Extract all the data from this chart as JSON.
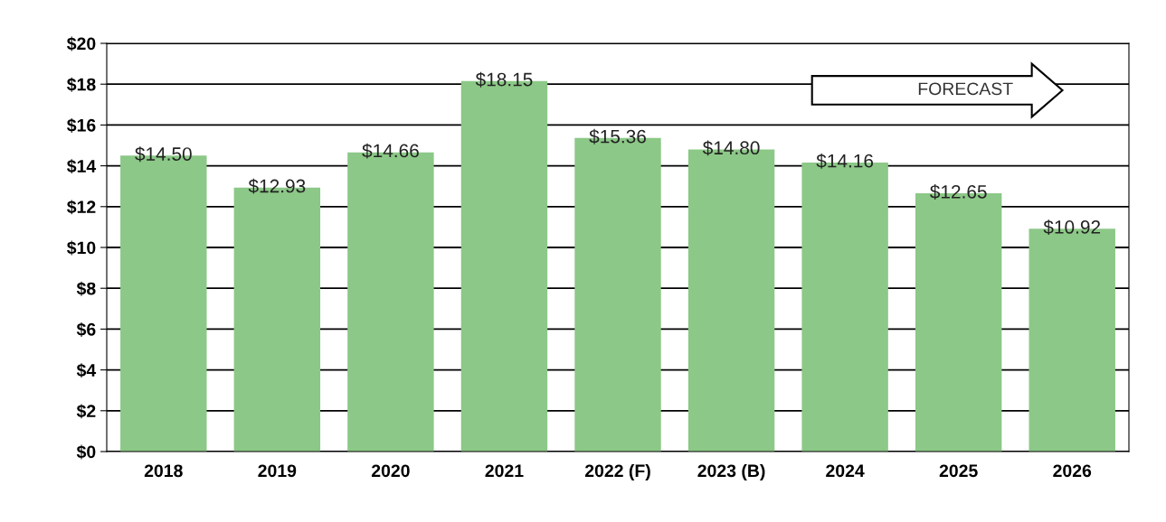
{
  "chart_data": {
    "type": "bar",
    "categories": [
      "2018",
      "2019",
      "2020",
      "2021",
      "2022 (F)",
      "2023 (B)",
      "2024",
      "2025",
      "2026"
    ],
    "series": [
      {
        "color": "#8cc887",
        "values": [
          14.5,
          12.93,
          14.66,
          18.15,
          15.36,
          14.8,
          14.16,
          12.65,
          10.92
        ],
        "value_labels": [
          "$14.50",
          "$12.93",
          "$14.66",
          "$18.15",
          "$15.36",
          "$14.80",
          "$14.16",
          "$12.65",
          "$10.92"
        ]
      }
    ],
    "ylim": [
      0,
      20
    ],
    "yticks": [
      {
        "value": 0,
        "label": "$0"
      },
      {
        "value": 2,
        "label": "$2"
      },
      {
        "value": 4,
        "label": "$4"
      },
      {
        "value": 6,
        "label": "$6"
      },
      {
        "value": 8,
        "label": "$8"
      },
      {
        "value": 10,
        "label": "$10"
      },
      {
        "value": 12,
        "label": "$12"
      },
      {
        "value": 14,
        "label": "$14"
      },
      {
        "value": 16,
        "label": "$16"
      },
      {
        "value": 18,
        "label": "$18"
      },
      {
        "value": 20,
        "label": "$20"
      }
    ],
    "grid": "y",
    "legend": false,
    "annotations": [
      "FORECAST"
    ]
  }
}
